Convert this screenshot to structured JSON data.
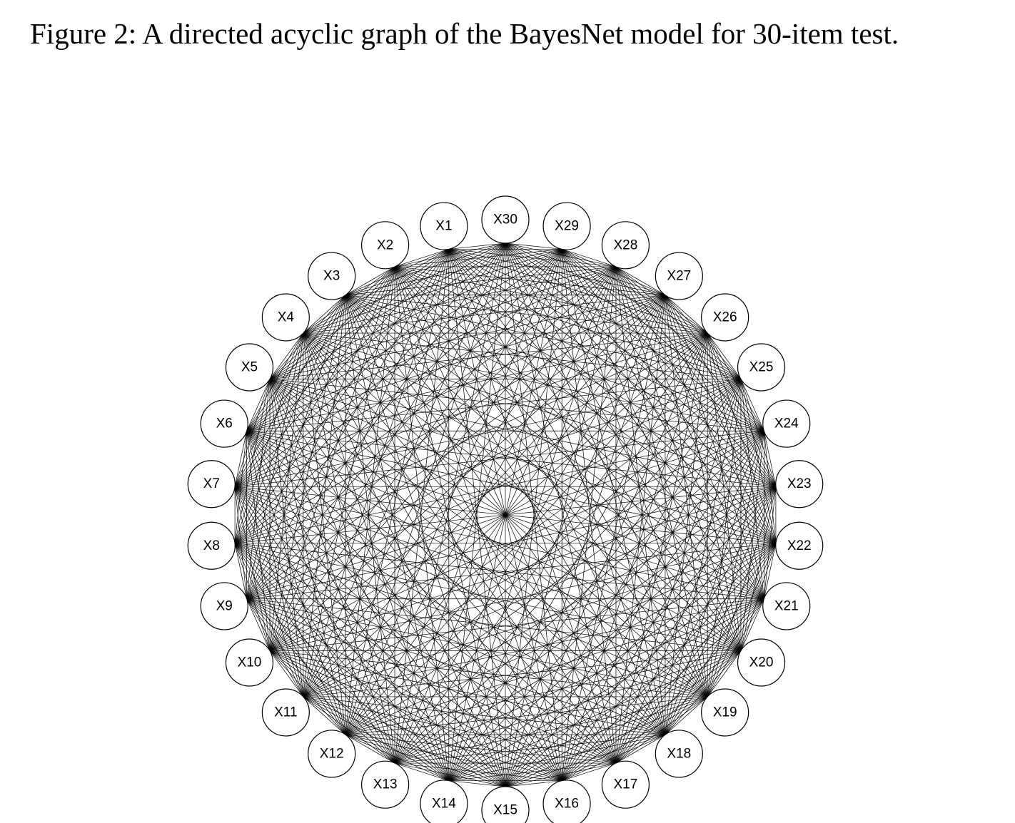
{
  "figure": {
    "caption": "Figure 2: A directed acyclic graph of the BayesNet model for 30-item test."
  },
  "graph": {
    "type": "complete directed acyclic graph, circular layout",
    "nodes": [
      "X1",
      "X2",
      "X3",
      "X4",
      "X5",
      "X6",
      "X7",
      "X8",
      "X9",
      "X10",
      "X11",
      "X12",
      "X13",
      "X14",
      "X15",
      "X16",
      "X17",
      "X18",
      "X19",
      "X20",
      "X21",
      "X22",
      "X23",
      "X24",
      "X25",
      "X26",
      "X27",
      "X28",
      "X29",
      "X30"
    ],
    "edges": "every pair of nodes is connected"
  }
}
